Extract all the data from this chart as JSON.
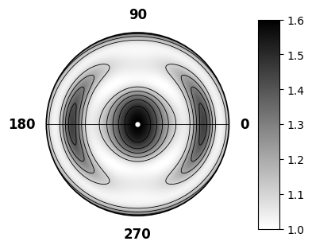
{
  "colorbar_min": 1.0,
  "colorbar_max": 1.6,
  "colorbar_ticks": [
    1.0,
    1.1,
    1.2,
    1.3,
    1.4,
    1.5,
    1.6
  ],
  "label_0": "0",
  "label_90": "90",
  "label_180": "180",
  "label_270": "270",
  "cmap": "gray_r",
  "background_color": "#ffffff",
  "label_fontsize": 12,
  "colorbar_fontsize": 10
}
